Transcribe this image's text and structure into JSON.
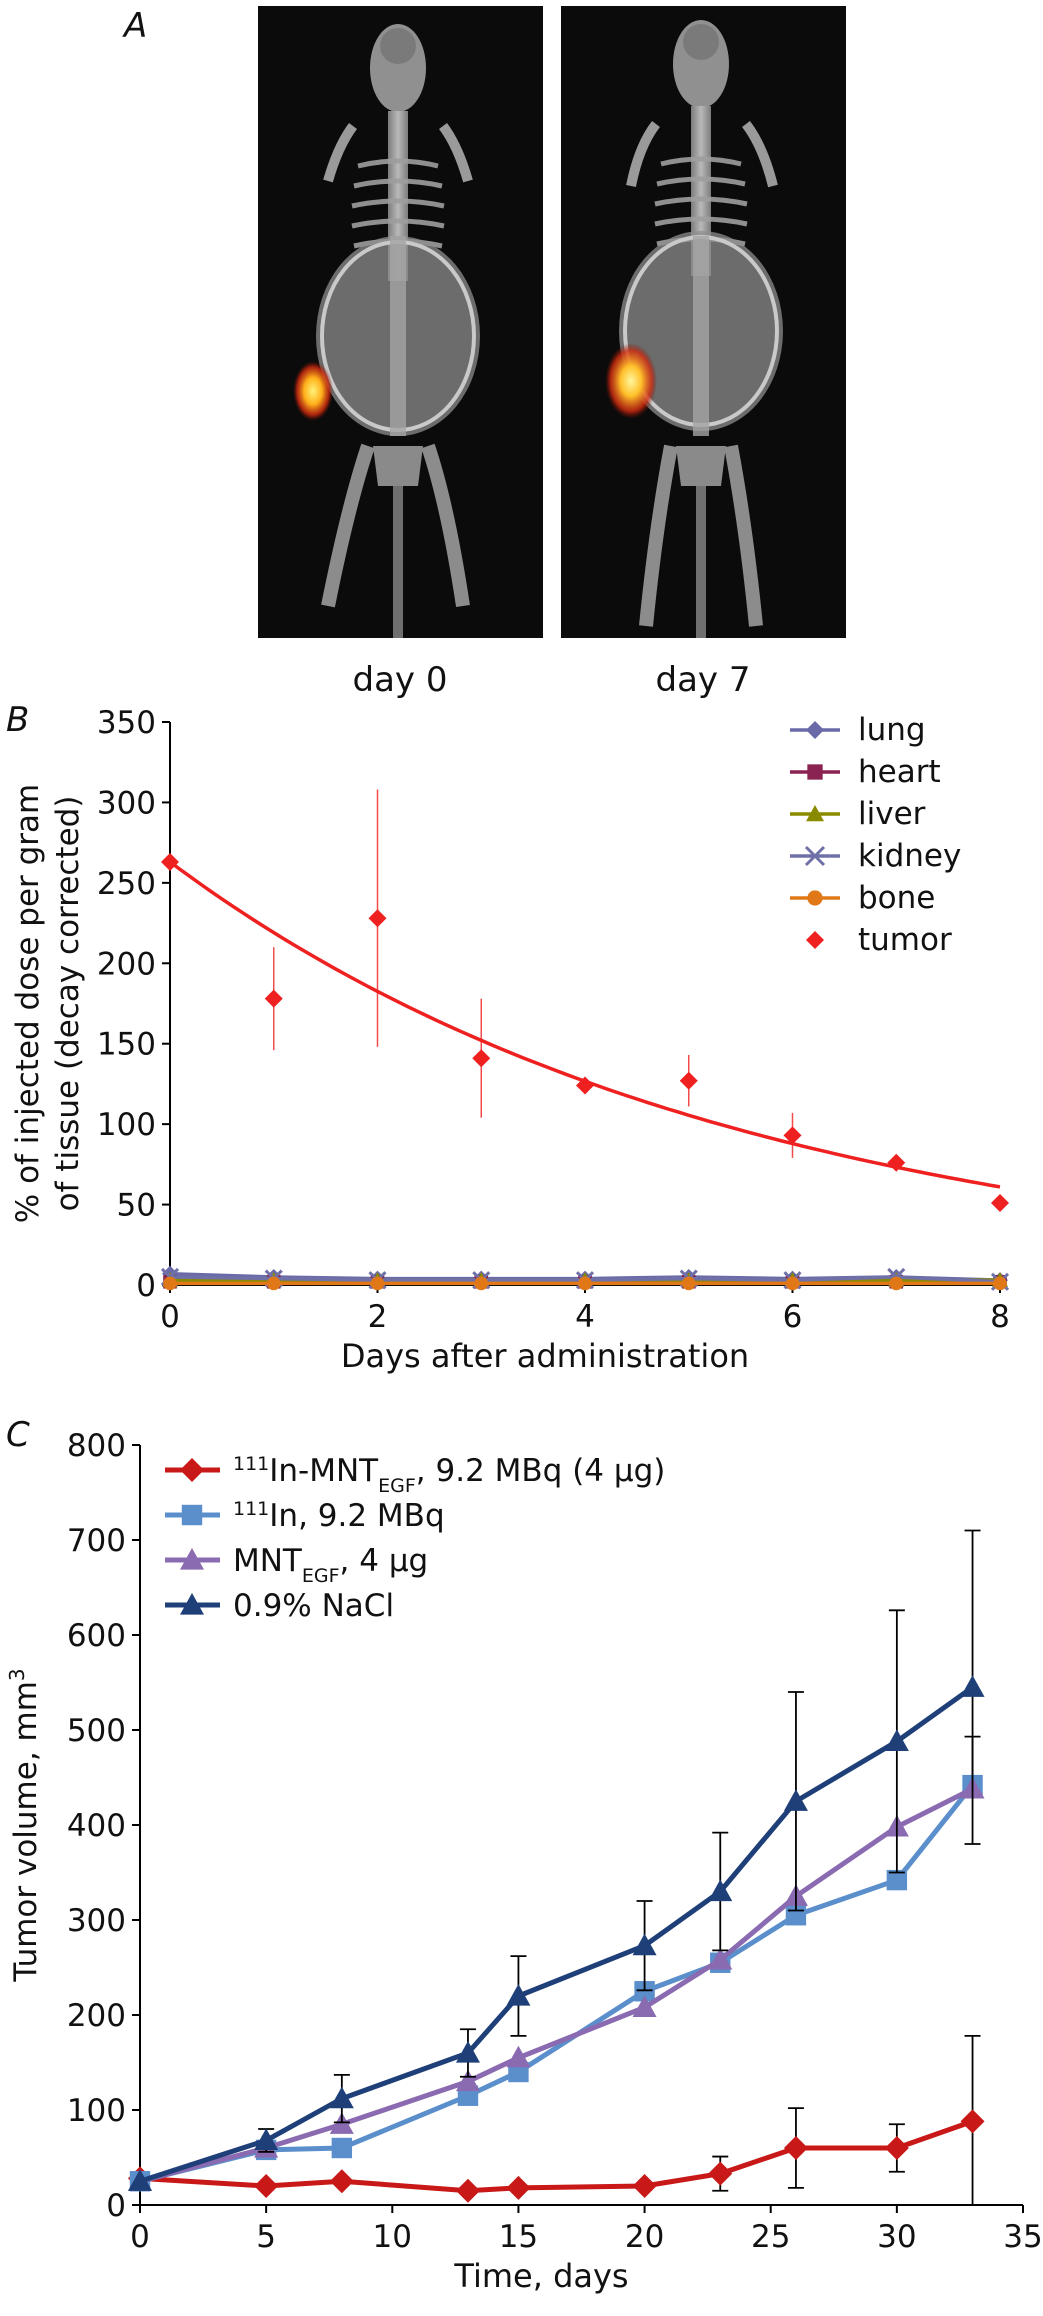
{
  "panel_a": {
    "letter": "A",
    "images": [
      {
        "caption": "day 0"
      },
      {
        "caption": "day 7"
      }
    ]
  },
  "panel_b": {
    "letter": "B"
  },
  "panel_c": {
    "letter": "C"
  },
  "chart_data": [
    {
      "type": "scatter",
      "panel": "B",
      "title": "",
      "xlabel": "Days after administration",
      "ylabel_lines": [
        "% of injected dose per gram",
        "of tissue (decay corrected)"
      ],
      "xlim": [
        0,
        8
      ],
      "ylim": [
        0,
        350
      ],
      "xticks": [
        0,
        2,
        4,
        6,
        8
      ],
      "yticks": [
        0,
        50,
        100,
        150,
        200,
        250,
        300,
        350
      ],
      "legend_position": "top-right",
      "series": [
        {
          "name": "lung",
          "color": "#6a6aa8",
          "marker": "diamond",
          "line": true,
          "x": [
            0,
            1,
            2,
            3,
            4,
            5,
            6,
            7,
            8
          ],
          "y": [
            7,
            5,
            4,
            4,
            4,
            5,
            4,
            5,
            3
          ]
        },
        {
          "name": "heart",
          "color": "#8a2252",
          "marker": "square",
          "line": true,
          "x": [
            0,
            1,
            2,
            3,
            4,
            5,
            6,
            7,
            8
          ],
          "y": [
            2,
            2,
            2,
            2,
            2,
            2,
            2,
            2,
            2
          ]
        },
        {
          "name": "liver",
          "color": "#8a8a00",
          "marker": "triangle",
          "line": true,
          "x": [
            0,
            1,
            2,
            3,
            4,
            5,
            6,
            7,
            8
          ],
          "y": [
            3,
            3,
            3,
            3,
            3,
            3,
            3,
            3,
            3
          ]
        },
        {
          "name": "kidney",
          "color": "#7070a8",
          "marker": "x",
          "line": true,
          "x": [
            0,
            1,
            2,
            3,
            4,
            5,
            6,
            7,
            8
          ],
          "y": [
            5,
            4,
            3,
            3,
            3,
            4,
            3,
            5,
            2
          ]
        },
        {
          "name": "bone",
          "color": "#e07818",
          "marker": "circle",
          "line": true,
          "x": [
            0,
            1,
            2,
            3,
            4,
            5,
            6,
            7,
            8
          ],
          "y": [
            1,
            1,
            1,
            1,
            1,
            1,
            1,
            1,
            1
          ]
        },
        {
          "name": "tumor",
          "color": "#ee2020",
          "marker": "diamond",
          "line": false,
          "x": [
            0,
            1,
            2,
            3,
            4,
            5,
            6,
            7,
            8
          ],
          "y": [
            263,
            178,
            228,
            141,
            124,
            127,
            93,
            76,
            51
          ],
          "err": [
            0,
            32,
            80,
            37,
            0,
            16,
            14,
            0,
            0
          ]
        }
      ],
      "fit_curve": {
        "color": "#ee2020",
        "start_y": 263,
        "end_y": 61
      }
    },
    {
      "type": "line",
      "panel": "C",
      "title": "",
      "xlabel": "Time, days",
      "ylabel": "Tumor volume, mm",
      "ylabel_sup": "3",
      "xlim": [
        0,
        35
      ],
      "ylim": [
        0,
        800
      ],
      "xticks": [
        0,
        5,
        10,
        15,
        20,
        25,
        30,
        35
      ],
      "yticks": [
        0,
        100,
        200,
        300,
        400,
        500,
        600,
        700,
        800
      ],
      "legend_position": "top-left",
      "x": [
        0,
        5,
        8,
        13,
        15,
        20,
        23,
        26,
        30,
        33
      ],
      "series": [
        {
          "name": "111In-MNTEGF, 9.2 MBq (4 μg)",
          "label_parts": {
            "sup": "111",
            "main": "In-MNT",
            "sub": "EGF",
            "tail": ", 9.2 MBq (4 μg)"
          },
          "color": "#c81818",
          "marker": "diamond",
          "values": [
            28,
            20,
            25,
            15,
            18,
            20,
            33,
            60,
            60,
            88
          ],
          "err": [
            0,
            0,
            0,
            0,
            0,
            0,
            18,
            42,
            25,
            90
          ]
        },
        {
          "name": "111In, 9.2 MBq",
          "label_parts": {
            "sup": "111",
            "main": "In",
            "sub": "",
            "tail": ", 9.2 MBq"
          },
          "color": "#5b8fcc",
          "marker": "square",
          "values": [
            25,
            58,
            60,
            115,
            140,
            225,
            255,
            305,
            342,
            442
          ],
          "err": [
            0,
            0,
            0,
            0,
            0,
            0,
            0,
            0,
            0,
            0
          ]
        },
        {
          "name": "MNTEGF, 4 μg",
          "label_parts": {
            "sup": "",
            "main": "MNT",
            "sub": "EGF",
            "tail": ", 4 μg"
          },
          "color": "#8a6ab0",
          "marker": "triangle",
          "values": [
            25,
            60,
            85,
            130,
            155,
            208,
            258,
            325,
            398,
            438
          ],
          "err": [
            0,
            0,
            0,
            0,
            0,
            0,
            0,
            0,
            0,
            55
          ]
        },
        {
          "name": "0.9% NaCl",
          "label_parts": {
            "sup": "",
            "main": "0.9% NaCl",
            "sub": "",
            "tail": ""
          },
          "color": "#1e3f78",
          "marker": "triangle",
          "values": [
            25,
            68,
            112,
            160,
            220,
            273,
            330,
            425,
            488,
            545
          ],
          "err": [
            0,
            12,
            25,
            25,
            42,
            47,
            62,
            115,
            138,
            165
          ]
        }
      ]
    }
  ]
}
